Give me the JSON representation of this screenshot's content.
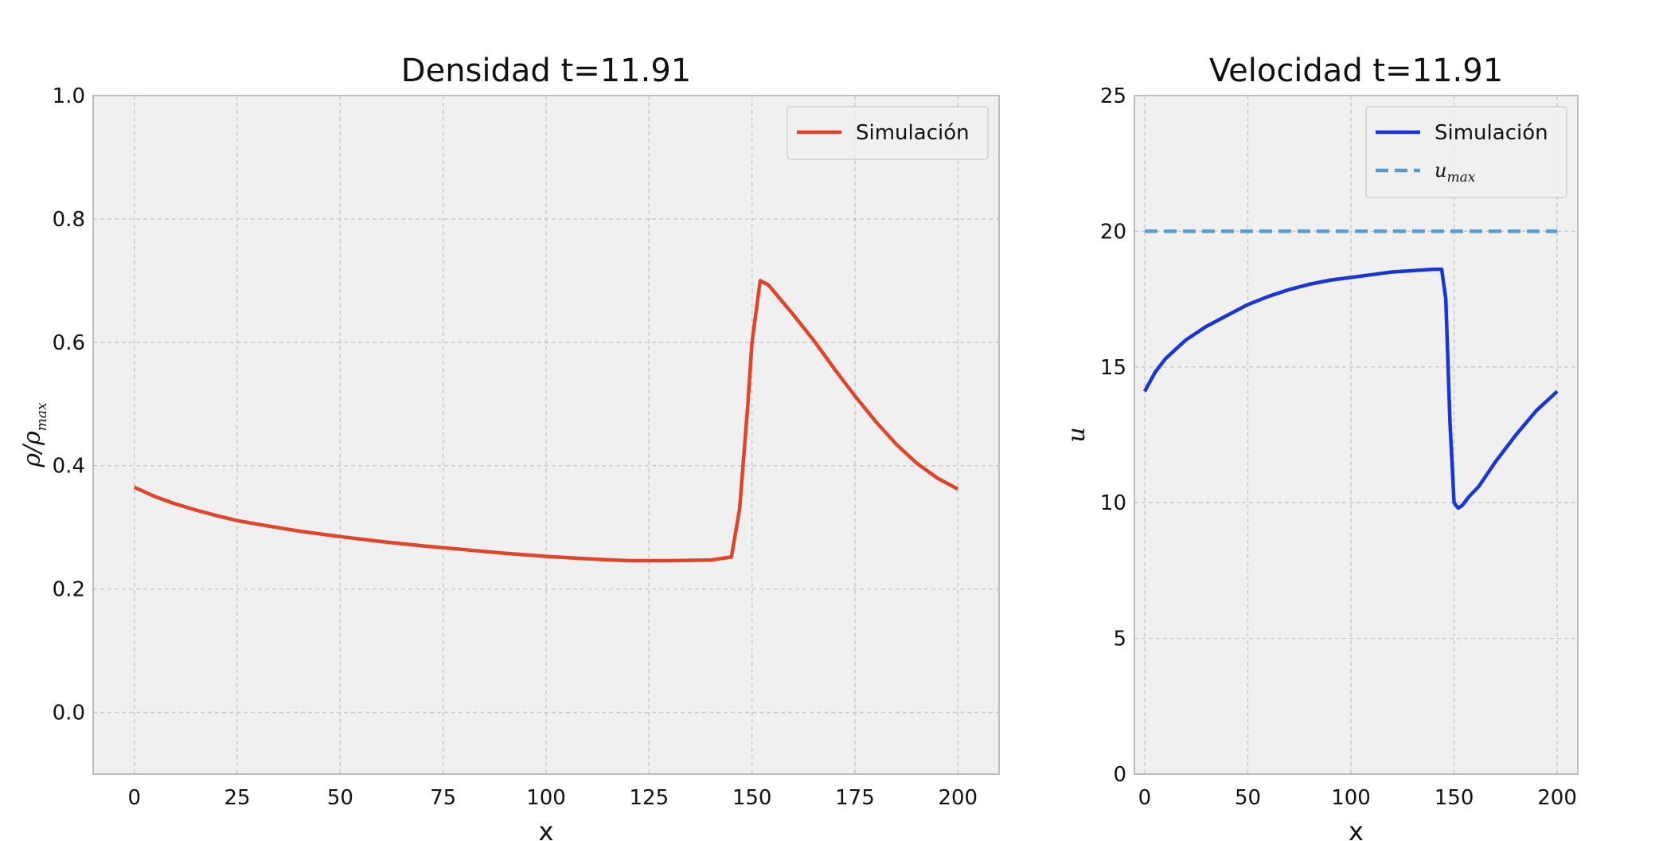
{
  "chart_data": [
    {
      "type": "line",
      "title": "Densidad t=11.91",
      "xlabel": "x",
      "ylabel": "ρ/ρmax",
      "ylabel_parts": {
        "base": "ρ/ρ",
        "sub": "max"
      },
      "xlim": [
        -10,
        210
      ],
      "ylim": [
        -0.1,
        1.0
      ],
      "xticks": [
        0,
        25,
        50,
        75,
        100,
        125,
        150,
        175,
        200
      ],
      "yticks": [
        0.0,
        0.2,
        0.4,
        0.6,
        0.8,
        1.0
      ],
      "xtick_labels": [
        "0",
        "25",
        "50",
        "75",
        "100",
        "125",
        "150",
        "175",
        "200"
      ],
      "ytick_labels": [
        "0.0",
        "0.2",
        "0.4",
        "0.6",
        "0.8",
        "1.0"
      ],
      "grid": true,
      "legend_position": "top-right",
      "series": [
        {
          "name": "Simulación",
          "color": "#e0442a",
          "style": "solid",
          "x": [
            0,
            5,
            10,
            15,
            20,
            25,
            30,
            40,
            50,
            60,
            70,
            80,
            90,
            100,
            110,
            120,
            130,
            140,
            145,
            147,
            149,
            150,
            152,
            154,
            156,
            160,
            165,
            170,
            175,
            180,
            185,
            190,
            195,
            200
          ],
          "y": [
            0.365,
            0.35,
            0.338,
            0.328,
            0.319,
            0.311,
            0.305,
            0.294,
            0.285,
            0.277,
            0.27,
            0.264,
            0.258,
            0.253,
            0.249,
            0.246,
            0.246,
            0.247,
            0.252,
            0.33,
            0.5,
            0.6,
            0.7,
            0.693,
            0.677,
            0.645,
            0.603,
            0.557,
            0.513,
            0.472,
            0.435,
            0.404,
            0.38,
            0.362
          ]
        }
      ]
    },
    {
      "type": "line",
      "title": "Velocidad t=11.91",
      "xlabel": "x",
      "ylabel": "u",
      "xlim": [
        -5,
        210
      ],
      "ylim": [
        0,
        25
      ],
      "xticks": [
        0,
        50,
        100,
        150,
        200
      ],
      "yticks": [
        0,
        5,
        10,
        15,
        20,
        25
      ],
      "xtick_labels": [
        "0",
        "50",
        "100",
        "150",
        "200"
      ],
      "ytick_labels": [
        "0",
        "5",
        "10",
        "15",
        "20",
        "25"
      ],
      "grid": true,
      "legend_position": "top-right",
      "series": [
        {
          "name": "Simulación",
          "color": "#1a35d6",
          "style": "solid",
          "x": [
            0,
            5,
            10,
            20,
            30,
            40,
            50,
            60,
            70,
            80,
            90,
            100,
            110,
            120,
            130,
            140,
            144,
            146,
            148,
            150,
            152,
            154,
            157,
            162,
            170,
            180,
            190,
            200
          ],
          "y": [
            14.1,
            14.8,
            15.3,
            16.0,
            16.5,
            16.9,
            17.3,
            17.6,
            17.85,
            18.05,
            18.2,
            18.3,
            18.4,
            18.5,
            18.55,
            18.6,
            18.6,
            17.5,
            13.0,
            10.0,
            9.8,
            9.9,
            10.2,
            10.6,
            11.5,
            12.5,
            13.4,
            14.1
          ]
        },
        {
          "name": "u_max",
          "name_parts": {
            "base": "u",
            "sub": "max"
          },
          "color": "#5b9bc9",
          "style": "dashed",
          "x": [
            0,
            200
          ],
          "y": [
            20,
            20
          ]
        }
      ]
    }
  ]
}
